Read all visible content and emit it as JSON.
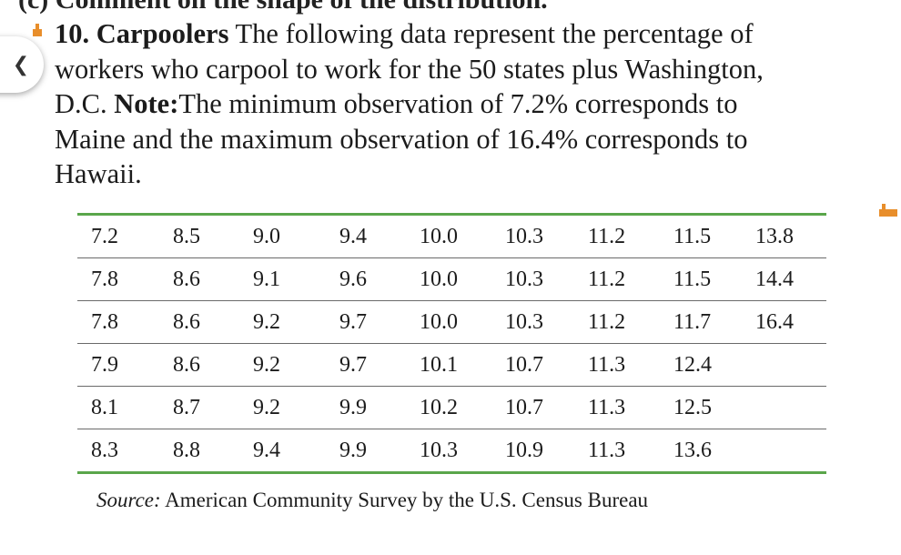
{
  "prev_problem_fragment": "(c) Comment on the shape of the distribution.",
  "back_icon": "chevron-left-icon",
  "accent_color": "#e88e2b",
  "rule_color": "#5aa64a",
  "problem": {
    "number": "10.",
    "title": "Carpoolers",
    "lines": [
      "The following data represent the percentage of",
      "workers who carpool to work for the 50 states plus Washington,",
      "D.C.",
      "Note:",
      "The minimum observation of 7.2% corresponds to",
      "Maine and the maximum observation of 16.4% corresponds to",
      "Hawaii."
    ]
  },
  "table": {
    "rows": [
      [
        "7.2",
        "8.5",
        "9.0",
        "9.4",
        "10.0",
        "10.3",
        "11.2",
        "11.5",
        "13.8"
      ],
      [
        "7.8",
        "8.6",
        "9.1",
        "9.6",
        "10.0",
        "10.3",
        "11.2",
        "11.5",
        "14.4"
      ],
      [
        "7.8",
        "8.6",
        "9.2",
        "9.7",
        "10.0",
        "10.3",
        "11.2",
        "11.7",
        "16.4"
      ],
      [
        "7.9",
        "8.6",
        "9.2",
        "9.7",
        "10.1",
        "10.7",
        "11.3",
        "12.4",
        ""
      ],
      [
        "8.1",
        "8.7",
        "9.2",
        "9.9",
        "10.2",
        "10.7",
        "11.3",
        "12.5",
        ""
      ],
      [
        "8.3",
        "8.8",
        "9.4",
        "9.9",
        "10.3",
        "10.9",
        "11.3",
        "13.6",
        ""
      ]
    ]
  },
  "source": {
    "label": "Source:",
    "text": "American Community Survey by the U.S. Census Bureau"
  }
}
